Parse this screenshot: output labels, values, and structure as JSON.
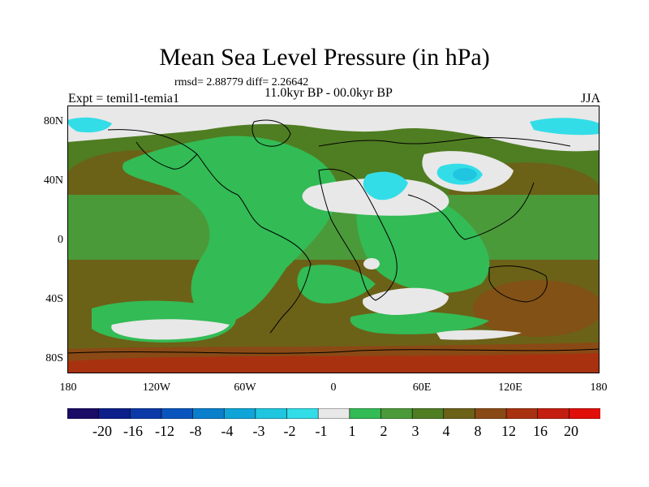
{
  "title": "Mean Sea Level Pressure (in hPa)",
  "stats": "rmsd= 2.88779 diff= 2.26642",
  "period": "11.0kyr BP - 00.0kyr BP",
  "experiment": "Expt = temil1-temia1",
  "season": "JJA",
  "axes": {
    "y_ticks": [
      "80N",
      "40N",
      "0",
      "40S",
      "80S"
    ],
    "x_ticks": [
      "180",
      "120W",
      "60W",
      "0",
      "60E",
      "120E",
      "180"
    ]
  },
  "colorbar": {
    "labels": [
      "-20",
      "-16",
      "-12",
      "-8",
      "-4",
      "-3",
      "-2",
      "-1",
      "1",
      "2",
      "3",
      "4",
      "8",
      "12",
      "16",
      "20"
    ],
    "colors": [
      "#1a0b66",
      "#0c1f8a",
      "#0b3aa8",
      "#0a55bd",
      "#0a7fcc",
      "#0fa5d8",
      "#20c6e0",
      "#33dde8",
      "#e8e8e8",
      "#33bb55",
      "#4b9a3a",
      "#4f7d22",
      "#6b6218",
      "#8a4a15",
      "#a8320f",
      "#c41e10",
      "#e00f0a"
    ]
  },
  "palette": {
    "land_outline": "#000000",
    "green": "#33bb55",
    "dark_green": "#4f7d22",
    "olive": "#6b6218",
    "brown": "#8a4a15",
    "red": "#a8320f",
    "light_gray": "#e8e8e8",
    "cyan": "#33dde8"
  }
}
